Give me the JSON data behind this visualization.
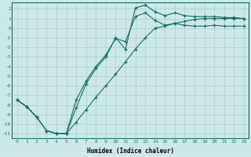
{
  "xlabel": "Humidex (Indice chaleur)",
  "bg_color": "#cce8e8",
  "grid_color": "#b0d0d0",
  "line_color": "#1a6b6b",
  "xlim": [
    -0.5,
    23.5
  ],
  "ylim": [
    -11.5,
    2.7
  ],
  "xticks": [
    0,
    1,
    2,
    3,
    4,
    5,
    6,
    7,
    8,
    9,
    10,
    11,
    12,
    13,
    14,
    15,
    16,
    17,
    18,
    19,
    20,
    21,
    22,
    23
  ],
  "yticks": [
    2,
    1,
    0,
    -1,
    -2,
    -3,
    -4,
    -5,
    -6,
    -7,
    -8,
    -9,
    -10,
    -11
  ],
  "x_upper": [
    0,
    1,
    2,
    3,
    4,
    5,
    6,
    7,
    8,
    9,
    10,
    11,
    12,
    13,
    14,
    15,
    16,
    17,
    18,
    19,
    20,
    21,
    22,
    23
  ],
  "y_upper": [
    -7.5,
    -8.2,
    -9.3,
    -10.7,
    -11.0,
    -11.0,
    -8.3,
    -5.8,
    -4.2,
    -3.0,
    -1.0,
    -2.2,
    2.1,
    2.4,
    1.7,
    1.3,
    1.6,
    1.3,
    1.2,
    1.2,
    1.2,
    1.1,
    1.1,
    1.0
  ],
  "x_middle": [
    0,
    1,
    2,
    3,
    4,
    5,
    6,
    7,
    8,
    9,
    10,
    11,
    12,
    13,
    14,
    15,
    16,
    17,
    18,
    19,
    20,
    21,
    22,
    23
  ],
  "y_middle": [
    -7.5,
    -8.2,
    -9.3,
    -10.7,
    -11.0,
    -11.0,
    -7.5,
    -5.5,
    -4.0,
    -2.8,
    -1.1,
    -1.4,
    1.2,
    1.6,
    0.8,
    0.3,
    0.5,
    0.3,
    0.2,
    0.2,
    0.3,
    0.2,
    0.2,
    0.2
  ],
  "x_lower": [
    0,
    1,
    2,
    3,
    4,
    5,
    6,
    7,
    8,
    9,
    10,
    11,
    12,
    13,
    14,
    15,
    16,
    17,
    18,
    19,
    20,
    21,
    22,
    23
  ],
  "y_lower": [
    -7.5,
    -8.2,
    -9.3,
    -10.7,
    -11.0,
    -11.0,
    -9.8,
    -8.5,
    -7.2,
    -6.0,
    -4.8,
    -3.5,
    -2.2,
    -1.0,
    0.0,
    0.2,
    0.5,
    0.7,
    0.9,
    1.0,
    1.0,
    1.0,
    1.0,
    1.0
  ]
}
